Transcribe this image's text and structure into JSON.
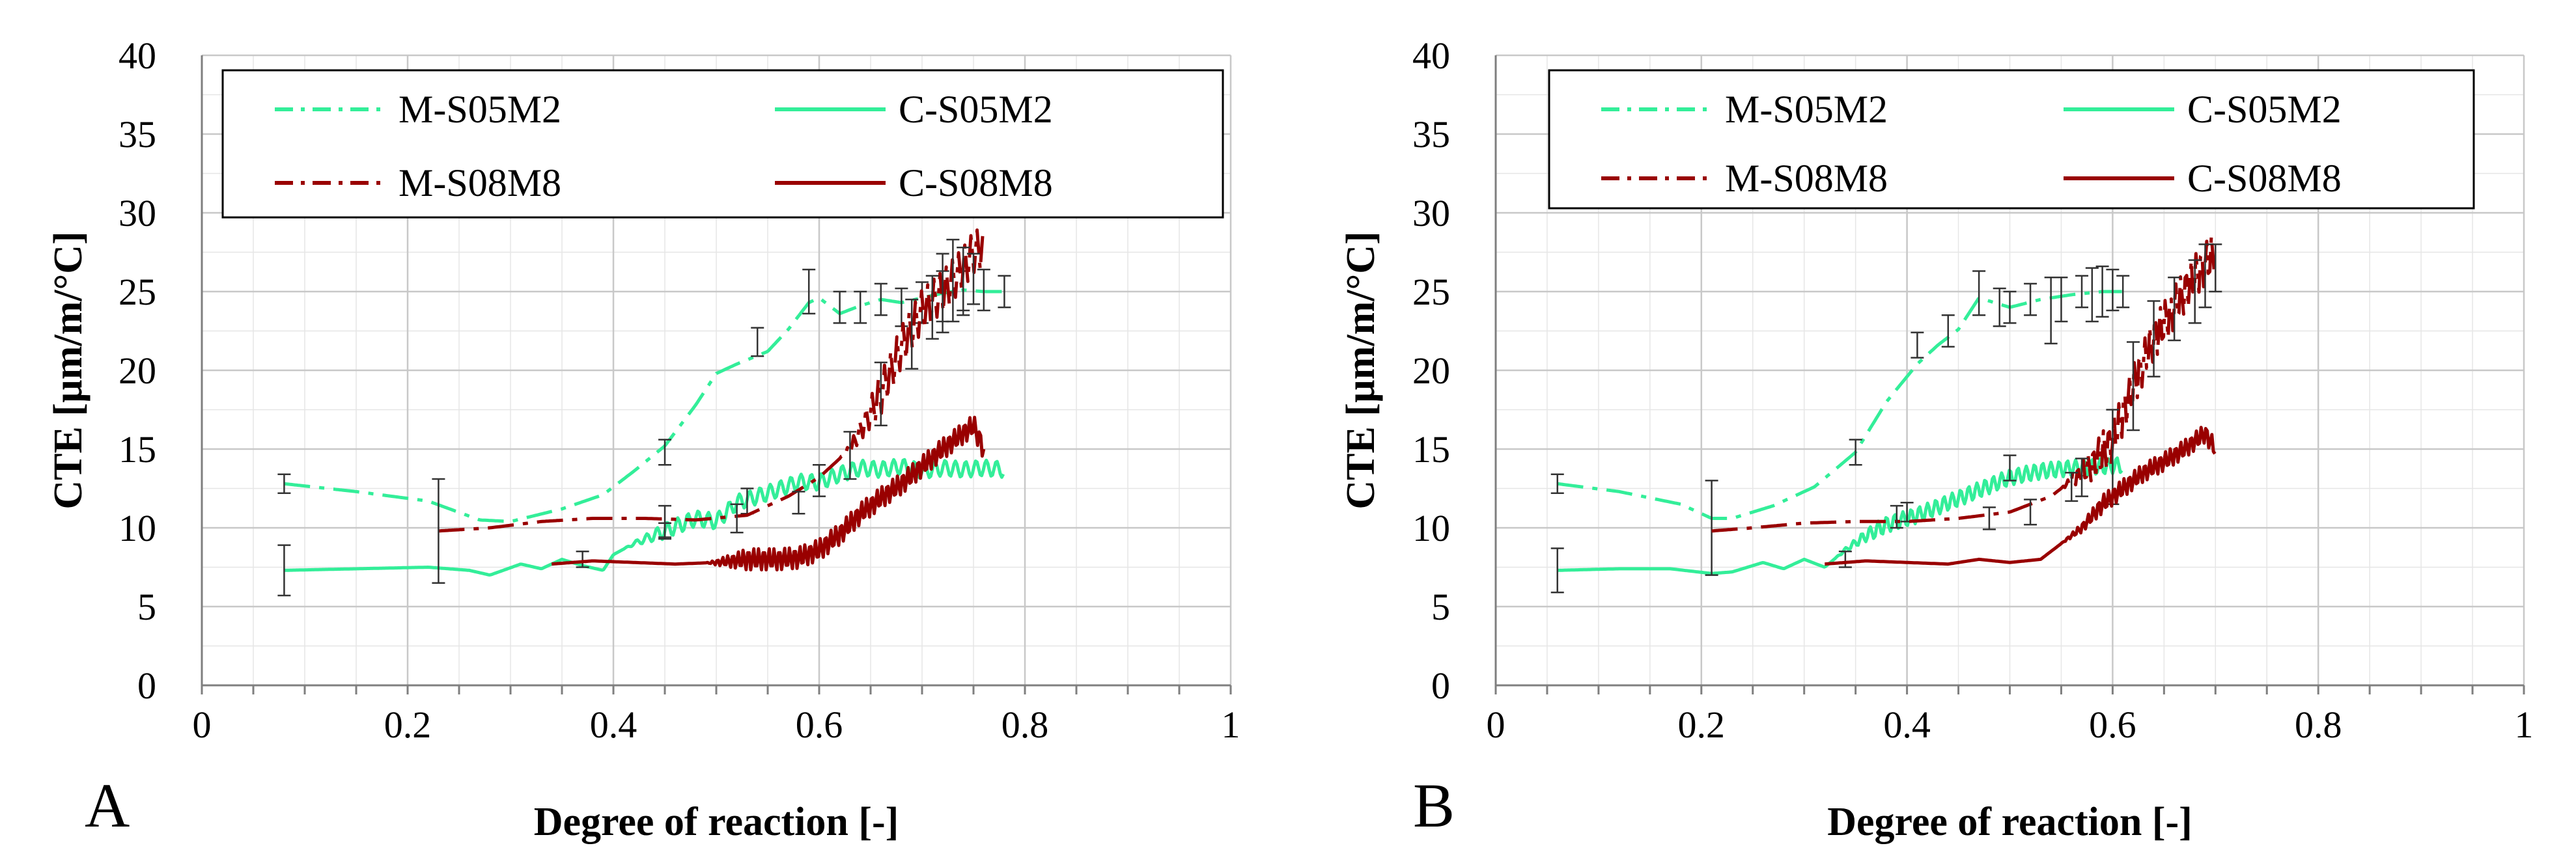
{
  "chart_data": [
    {
      "type": "line",
      "panel_label": "A",
      "xlabel": "Degree of reaction [-]",
      "ylabel": "CTE [µm/m/°C]",
      "xlim": [
        0,
        1
      ],
      "ylim": [
        0,
        40
      ],
      "x_ticks": [
        "0",
        "0.2",
        "0.4",
        "0.6",
        "0.8",
        "1"
      ],
      "y_ticks": [
        "0",
        "5",
        "10",
        "15",
        "20",
        "25",
        "30",
        "35",
        "40"
      ],
      "grid": true,
      "legend": [
        "M-S05M2",
        "C-S05M2",
        "M-S08M8",
        "C-S08M8"
      ],
      "series": [
        {
          "name": "M-S05M2",
          "color": "#33ee99",
          "dash": "dashdot",
          "x": [
            0.08,
            0.15,
            0.22,
            0.27,
            0.3,
            0.35,
            0.39,
            0.42,
            0.45,
            0.48,
            0.5,
            0.52,
            0.55,
            0.57,
            0.59,
            0.6,
            0.62,
            0.64,
            0.66,
            0.68,
            0.7,
            0.72,
            0.74,
            0.76,
            0.78
          ],
          "y": [
            12.8,
            12.3,
            11.7,
            10.5,
            10.4,
            11.2,
            12.1,
            13.6,
            15.2,
            17.8,
            19.8,
            20.4,
            21.2,
            22.6,
            24.3,
            24.6,
            23.6,
            24.1,
            24.5,
            24.3,
            24.6,
            24.9,
            25.1,
            25.0,
            25.0
          ],
          "error_x": [
            0.08,
            0.45,
            0.54,
            0.59,
            0.62,
            0.64,
            0.66,
            0.68,
            0.7,
            0.72,
            0.74,
            0.76,
            0.78
          ],
          "error_y": [
            12.8,
            14.8,
            21.8,
            25.0,
            24.0,
            24.0,
            24.5,
            24.0,
            24.3,
            24.7,
            24.9,
            25.1,
            25.0
          ],
          "error_v": [
            0.6,
            0.8,
            0.9,
            1.4,
            1.0,
            1.0,
            1.0,
            1.2,
            1.3,
            1.6,
            1.4,
            1.3,
            1.0
          ]
        },
        {
          "name": "C-S05M2",
          "color": "#33ee99",
          "dash": "solid",
          "x": [
            0.08,
            0.15,
            0.22,
            0.26,
            0.28,
            0.31,
            0.33,
            0.35,
            0.37,
            0.39,
            0.4,
            0.42,
            0.45,
            0.48,
            0.5,
            0.52,
            0.55,
            0.58,
            0.6,
            0.62,
            0.64,
            0.66,
            0.68,
            0.7,
            0.72,
            0.74,
            0.76,
            0.78
          ],
          "y": [
            7.3,
            7.4,
            7.5,
            7.3,
            7.0,
            7.7,
            7.4,
            8.0,
            7.6,
            7.3,
            8.3,
            9.0,
            9.8,
            10.6,
            10.4,
            11.6,
            12.2,
            12.9,
            12.9,
            13.4,
            13.8,
            13.7,
            13.9,
            13.6,
            13.8,
            13.7,
            13.8,
            13.7
          ],
          "osc_from": 0.41,
          "osc_amp": 0.5,
          "osc_period": 0.01,
          "error_x": [
            0.08,
            0.37,
            0.45,
            0.53,
            0.6
          ],
          "error_y": [
            7.3,
            8.0,
            9.8,
            11.7,
            13.0
          ],
          "error_v": [
            1.6,
            0.5,
            0.5,
            0.8,
            1.0
          ]
        },
        {
          "name": "M-S08M8",
          "color": "#990000",
          "dash": "dashdot",
          "x": [
            0.23,
            0.28,
            0.33,
            0.38,
            0.43,
            0.48,
            0.53,
            0.57,
            0.6,
            0.63,
            0.66,
            0.68,
            0.7,
            0.72,
            0.74,
            0.75,
            0.76
          ],
          "y": [
            9.8,
            10.0,
            10.4,
            10.6,
            10.6,
            10.5,
            10.8,
            12.0,
            13.2,
            15.0,
            18.5,
            21.5,
            23.8,
            25.0,
            26.5,
            27.5,
            27.8
          ],
          "osc_from": 0.62,
          "osc_amp": 1.3,
          "osc_period": 0.006,
          "error_x": [
            0.23,
            0.45,
            0.52,
            0.58,
            0.63,
            0.66,
            0.69,
            0.71,
            0.72,
            0.73,
            0.74,
            0.75
          ],
          "error_y": [
            9.8,
            10.4,
            10.6,
            11.6,
            14.6,
            18.5,
            22.3,
            24.0,
            24.9,
            25.7,
            25.8,
            25.8
          ],
          "error_v": [
            3.3,
            1.0,
            0.9,
            0.7,
            1.5,
            2.0,
            2.2,
            2.0,
            2.5,
            2.6,
            2.0,
            1.6
          ]
        },
        {
          "name": "C-S08M8",
          "color": "#990000",
          "dash": "solid",
          "x": [
            0.34,
            0.38,
            0.42,
            0.46,
            0.5,
            0.53,
            0.56,
            0.58,
            0.6,
            0.62,
            0.64,
            0.66,
            0.68,
            0.7,
            0.72,
            0.74,
            0.75,
            0.76
          ],
          "y": [
            7.7,
            7.9,
            7.8,
            7.7,
            7.8,
            8.0,
            8.0,
            8.1,
            8.6,
            9.6,
            10.9,
            11.9,
            12.8,
            13.9,
            15.0,
            16.0,
            16.5,
            15.0
          ],
          "osc_from": 0.49,
          "osc_amp": 0.7,
          "osc_period": 0.005,
          "error_x": [],
          "error_y": [],
          "error_v": []
        }
      ]
    },
    {
      "type": "line",
      "panel_label": "B",
      "xlabel": "Degree of reaction [-]",
      "ylabel": "CTE [µm/m/°C]",
      "xlim": [
        0,
        1
      ],
      "ylim": [
        0,
        40
      ],
      "x_ticks": [
        "0",
        "0.2",
        "0.4",
        "0.6",
        "0.8",
        "1"
      ],
      "y_ticks": [
        "0",
        "5",
        "10",
        "15",
        "20",
        "25",
        "30",
        "35",
        "40"
      ],
      "grid": true,
      "legend": [
        "M-S05M2",
        "C-S05M2",
        "M-S08M8",
        "C-S08M8"
      ],
      "series": [
        {
          "name": "M-S05M2",
          "color": "#33ee99",
          "dash": "dashdot",
          "x": [
            0.06,
            0.12,
            0.18,
            0.21,
            0.23,
            0.27,
            0.31,
            0.35,
            0.38,
            0.41,
            0.43,
            0.45,
            0.47,
            0.5,
            0.53,
            0.56,
            0.59,
            0.61
          ],
          "y": [
            12.8,
            12.3,
            11.5,
            10.6,
            10.6,
            11.4,
            12.6,
            14.8,
            18.0,
            20.4,
            21.6,
            22.6,
            24.6,
            24.0,
            24.5,
            24.8,
            25.0,
            25.0
          ],
          "error_x": [
            0.06,
            0.35,
            0.41,
            0.44,
            0.47,
            0.49,
            0.5,
            0.52,
            0.54,
            0.55,
            0.57,
            0.58,
            0.59,
            0.6,
            0.61
          ],
          "error_y": [
            12.8,
            14.8,
            21.6,
            22.5,
            24.9,
            24.0,
            24.0,
            24.5,
            23.8,
            24.5,
            25.0,
            24.8,
            25.0,
            25.1,
            25.0
          ],
          "error_v": [
            0.6,
            0.8,
            0.8,
            1.0,
            1.4,
            1.2,
            1.0,
            1.0,
            2.1,
            1.4,
            1.0,
            1.7,
            1.6,
            1.3,
            1.0
          ]
        },
        {
          "name": "C-S05M2",
          "color": "#33ee99",
          "dash": "solid",
          "x": [
            0.06,
            0.12,
            0.17,
            0.21,
            0.23,
            0.26,
            0.28,
            0.3,
            0.32,
            0.34,
            0.36,
            0.38,
            0.41,
            0.44,
            0.47,
            0.5,
            0.53,
            0.56,
            0.59,
            0.61
          ],
          "y": [
            7.3,
            7.4,
            7.4,
            7.1,
            7.2,
            7.8,
            7.4,
            8.0,
            7.5,
            8.6,
            9.5,
            10.2,
            10.8,
            11.6,
            12.4,
            13.2,
            13.6,
            13.8,
            13.9,
            14.0
          ],
          "osc_from": 0.33,
          "osc_amp": 0.5,
          "osc_period": 0.008,
          "error_x": [
            0.06,
            0.21,
            0.34,
            0.4,
            0.5
          ],
          "error_y": [
            7.3,
            10.0,
            8.0,
            11.0,
            13.8
          ],
          "error_v": [
            1.4,
            3.0,
            0.5,
            0.6,
            0.8
          ]
        },
        {
          "name": "M-S08M8",
          "color": "#990000",
          "dash": "dashdot",
          "x": [
            0.21,
            0.25,
            0.3,
            0.35,
            0.4,
            0.45,
            0.5,
            0.54,
            0.56,
            0.58,
            0.6,
            0.62,
            0.64,
            0.66,
            0.68,
            0.7
          ],
          "y": [
            9.8,
            10.0,
            10.3,
            10.4,
            10.4,
            10.6,
            11.0,
            12.0,
            13.0,
            14.0,
            15.5,
            19.0,
            22.0,
            24.0,
            26.0,
            27.5
          ],
          "osc_from": 0.55,
          "osc_amp": 1.4,
          "osc_period": 0.005,
          "error_x": [
            0.39,
            0.48,
            0.52,
            0.56,
            0.57,
            0.6,
            0.62,
            0.64,
            0.66,
            0.68,
            0.69,
            0.7
          ],
          "error_y": [
            10.7,
            10.6,
            11.0,
            12.6,
            13.2,
            14.5,
            19.0,
            22.0,
            23.9,
            25.0,
            26.0,
            26.5
          ],
          "error_v": [
            0.7,
            0.7,
            0.8,
            0.9,
            1.2,
            3.0,
            2.8,
            2.4,
            2.0,
            2.0,
            2.0,
            1.5
          ]
        },
        {
          "name": "C-S08M8",
          "color": "#990000",
          "dash": "solid",
          "x": [
            0.32,
            0.36,
            0.4,
            0.44,
            0.47,
            0.5,
            0.53,
            0.55,
            0.57,
            0.59,
            0.61,
            0.63,
            0.65,
            0.67,
            0.69,
            0.7
          ],
          "y": [
            7.7,
            7.9,
            7.8,
            7.7,
            8.0,
            7.8,
            8.0,
            9.0,
            10.0,
            11.5,
            12.5,
            13.5,
            14.2,
            15.0,
            16.0,
            15.0
          ],
          "osc_from": 0.55,
          "osc_amp": 0.6,
          "osc_period": 0.005,
          "error_x": [],
          "error_y": [],
          "error_v": []
        }
      ]
    }
  ]
}
